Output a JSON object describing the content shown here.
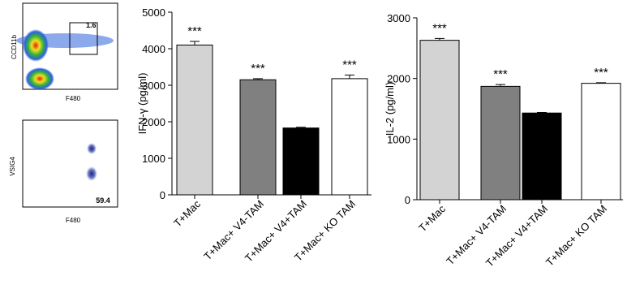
{
  "flow_plots": [
    {
      "y_label": "CCD11b",
      "x_label": "F480",
      "gate_value": "1.6"
    },
    {
      "y_label": "VSIG4",
      "x_label": "F480",
      "gate_value": "59.4"
    }
  ],
  "chart_data": [
    {
      "type": "bar",
      "y_label": "IFN-γ (pg/ml)",
      "categories": [
        "T+Mac",
        "T+Mac+ V4-TAM",
        "T+Mac+ V4+TAM",
        "T+Mac+ KO TAM"
      ],
      "values": [
        4100,
        3150,
        1830,
        3180
      ],
      "errors": [
        100,
        30,
        20,
        100
      ],
      "annotations": [
        "***",
        "***",
        null,
        "***"
      ],
      "colors": [
        "#d3d3d3",
        "#808080",
        "#000000",
        "#ffffff"
      ],
      "ylim": [
        0,
        5000
      ],
      "yticks": [
        0,
        1000,
        2000,
        3000,
        4000,
        5000
      ]
    },
    {
      "type": "bar",
      "y_label": "IL-2 (pg/ml)",
      "categories": [
        "T+Mac",
        "T+Mac+ V4-TAM",
        "T+Mac+ V4+TAM",
        "T+Mac+ KO TAM"
      ],
      "values": [
        2630,
        1870,
        1430,
        1920
      ],
      "errors": [
        30,
        30,
        10,
        10
      ],
      "annotations": [
        "***",
        "***",
        null,
        "***"
      ],
      "colors": [
        "#d3d3d3",
        "#808080",
        "#000000",
        "#ffffff"
      ],
      "ylim": [
        0,
        3000
      ],
      "yticks": [
        0,
        1000,
        2000,
        3000
      ]
    }
  ]
}
